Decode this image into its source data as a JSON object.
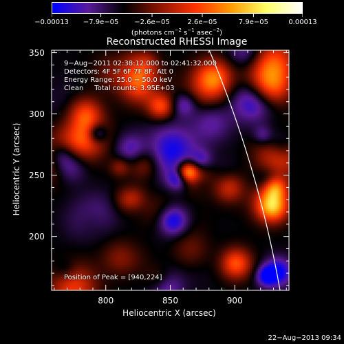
{
  "colorbar": {
    "tick_labels": [
      "−0.00013",
      "−7.9e−05",
      "−2.6e−05",
      "2.6e−05",
      "7.9e−05",
      "0.00013"
    ],
    "tick_values": [
      -0.00013,
      -7.9e-05,
      -2.6e-05,
      2.6e-05,
      7.9e-05,
      0.00013
    ],
    "range": [
      -0.00013,
      0.00013
    ],
    "units_prefix": "(photons cm",
    "units_sup1": "−2",
    "units_mid1": " s",
    "units_sup2": "−1",
    "units_mid2": " asec",
    "units_sup3": "−2",
    "units_suffix": ")",
    "colors": [
      "#0000ff",
      "#5a1a9a",
      "#000000",
      "#8a1500",
      "#ff3300",
      "#ff9900",
      "#ffff66",
      "#ffffff"
    ]
  },
  "chart_data": {
    "type": "heatmap",
    "title": "Reconstructed RHESSI Image",
    "xlabel": "Heliocentric X (arcsec)",
    "ylabel": "Heliocentric Y (arcsec)",
    "xlim": [
      758,
      942
    ],
    "ylim": [
      156,
      352
    ],
    "x_ticks": [
      800,
      850,
      900
    ],
    "y_ticks": [
      200,
      250,
      300,
      350
    ],
    "peak": [
      940,
      224
    ],
    "limb_center": [
      0,
      0
    ],
    "limb_radius": 948
  },
  "info": {
    "time_range": "9−Aug−2011 02:38:12.000 to 02:41:32.000",
    "detectors": "Detectors: 4F 5F 6F 7F 8F, Att 0",
    "energy": "Energy Range: 25.0 − 50.0 keV",
    "clean": "Clean     Total counts: 3.95E+03",
    "peak_label": "Position of Peak = [940,224]"
  },
  "footer": {
    "date": "22−Aug−2013 09:34"
  }
}
